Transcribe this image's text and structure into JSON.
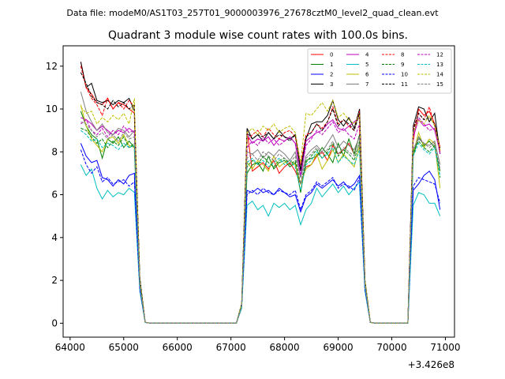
{
  "chart_data": {
    "type": "line",
    "suptitle": "Data file: modeM0/AS1T03_257T01_9000003976_27678cztM0_level2_quad_clean.evt",
    "title": "Quadrant 3 module wise count rates with 100.0s bins.",
    "xlabel": "",
    "ylabel": "",
    "x_offset_label": "+3.426e8",
    "xlim": [
      63870,
      71170
    ],
    "ylim": [
      -0.65,
      12.95
    ],
    "x_ticks": [
      64000,
      65000,
      66000,
      67000,
      68000,
      69000,
      70000,
      71000
    ],
    "x_tick_labels": [
      "64000",
      "65000",
      "66000",
      "67000",
      "68000",
      "69000",
      "70000",
      "71000"
    ],
    "y_ticks": [
      0,
      2,
      4,
      6,
      8,
      10,
      12
    ],
    "y_tick_labels": [
      "0",
      "2",
      "4",
      "6",
      "8",
      "10",
      "12"
    ],
    "legend_position": "upper right",
    "segments": [
      {
        "x_start": 64200,
        "count": 11
      },
      {
        "x_start": 65200,
        "count": 10
      },
      {
        "x_start": 67100,
        "count": 24
      },
      {
        "x_start": 69400,
        "count": 10
      },
      {
        "x_start": 70300,
        "count": 7
      }
    ],
    "series": [
      {
        "name": "0",
        "color": "#ff0000",
        "dashed": false,
        "values": [
          12.2,
          11.0,
          10.7,
          10.3,
          10.2,
          10.5,
          10.0,
          10.3,
          10.2,
          10.0,
          9.8,
          9.6,
          2.0,
          0.04,
          0,
          0,
          0,
          0,
          0,
          0,
          0,
          0,
          0.8,
          9.0,
          7.1,
          7.3,
          7.5,
          7.2,
          7.6,
          7.0,
          7.3,
          7.5,
          7.1,
          6.5,
          7.3,
          7.4,
          7.8,
          8.0,
          7.6,
          8.3,
          7.9,
          8.1,
          8.4,
          7.9,
          8.8,
          9.8,
          2.0,
          0.04,
          0,
          0,
          0,
          0,
          0,
          0,
          0,
          0,
          8.5,
          10.0,
          9.7,
          9.9,
          9.3,
          8.2
        ]
      },
      {
        "name": "1",
        "color": "#008000",
        "dashed": false,
        "values": [
          9.9,
          9.2,
          8.8,
          8.6,
          7.7,
          8.6,
          8.4,
          8.7,
          8.2,
          8.5,
          8.2,
          8.0,
          1.8,
          0.04,
          0,
          0,
          0,
          0,
          0,
          0,
          0,
          0,
          0.8,
          7.0,
          7.4,
          7.5,
          7.1,
          7.8,
          7.2,
          7.5,
          7.6,
          7.3,
          7.5,
          6.1,
          7.6,
          7.7,
          7.8,
          8.2,
          7.9,
          7.5,
          8.4,
          7.8,
          8.6,
          7.9,
          8.8,
          8.7,
          1.8,
          0.04,
          0,
          0,
          0,
          0,
          0,
          0,
          0,
          0,
          7.8,
          8.7,
          8.3,
          8.5,
          8.2,
          7.1
        ]
      },
      {
        "name": "2",
        "color": "#0000ff",
        "dashed": false,
        "values": [
          8.4,
          7.8,
          7.5,
          7.6,
          6.8,
          6.7,
          6.4,
          6.7,
          6.5,
          6.9,
          7.0,
          6.8,
          1.6,
          0.04,
          0,
          0,
          0,
          0,
          0,
          0,
          0,
          0,
          0.8,
          6.2,
          6.1,
          6.3,
          6.1,
          6.2,
          6.0,
          6.3,
          6.1,
          5.9,
          6.0,
          5.2,
          5.9,
          6.1,
          6.5,
          6.3,
          6.5,
          6.7,
          6.4,
          6.6,
          6.3,
          6.5,
          6.9,
          6.9,
          1.6,
          0.04,
          0,
          0,
          0,
          0,
          0,
          0,
          0,
          0,
          6.2,
          6.5,
          6.9,
          7.1,
          6.7,
          5.3
        ]
      },
      {
        "name": "3",
        "color": "#000000",
        "dashed": false,
        "values": [
          12.2,
          11.0,
          11.2,
          10.4,
          10.3,
          10.4,
          10.2,
          10.4,
          10.3,
          10.5,
          9.9,
          9.6,
          2.1,
          0.04,
          0,
          0,
          0,
          0,
          0,
          0,
          0,
          0,
          0.9,
          9.1,
          8.6,
          8.8,
          8.5,
          8.9,
          8.6,
          9.0,
          8.7,
          8.6,
          8.8,
          7.1,
          8.6,
          9.3,
          9.4,
          9.4,
          9.7,
          10.4,
          9.5,
          9.2,
          9.6,
          9.1,
          10.0,
          10.0,
          2.0,
          0.04,
          0,
          0,
          0,
          0,
          0,
          0,
          0,
          0,
          9.2,
          10.1,
          10.0,
          9.4,
          9.8,
          7.9
        ]
      },
      {
        "name": "4",
        "color": "#bf00bf",
        "dashed": false,
        "values": [
          9.6,
          9.5,
          9.3,
          9.0,
          9.2,
          9.0,
          8.8,
          9.0,
          8.9,
          9.1,
          8.9,
          8.7,
          1.8,
          0.04,
          0,
          0,
          0,
          0,
          0,
          0,
          0,
          0,
          0.8,
          8.8,
          8.4,
          8.6,
          8.5,
          8.7,
          8.3,
          8.6,
          8.5,
          8.7,
          8.4,
          6.8,
          8.5,
          8.7,
          8.9,
          9.0,
          9.3,
          9.5,
          9.1,
          9.0,
          9.2,
          9.4,
          9.6,
          9.5,
          1.8,
          0.04,
          0,
          0,
          0,
          0,
          0,
          0,
          0,
          0,
          8.7,
          9.5,
          9.2,
          9.3,
          9.0,
          8.0
        ]
      },
      {
        "name": "5",
        "color": "#00bfbf",
        "dashed": false,
        "values": [
          7.4,
          6.9,
          7.2,
          6.3,
          5.8,
          6.2,
          5.9,
          6.1,
          6.0,
          6.3,
          6.1,
          6.0,
          1.5,
          0.04,
          0,
          0,
          0,
          0,
          0,
          0,
          0,
          0,
          0.7,
          5.5,
          5.7,
          5.3,
          5.5,
          5.0,
          5.6,
          5.4,
          5.6,
          5.3,
          5.5,
          4.6,
          5.3,
          5.6,
          6.3,
          5.9,
          6.2,
          6.5,
          6.1,
          6.4,
          6.0,
          6.3,
          6.6,
          6.4,
          1.5,
          0.04,
          0,
          0,
          0,
          0,
          0,
          0,
          0,
          0,
          5.5,
          6.1,
          6.0,
          5.6,
          5.6,
          5.0
        ]
      },
      {
        "name": "6",
        "color": "#bfbf00",
        "dashed": false,
        "values": [
          10.2,
          9.2,
          8.6,
          8.3,
          8.0,
          8.6,
          8.7,
          8.4,
          8.8,
          8.3,
          8.2,
          8.1,
          1.9,
          0.04,
          0,
          0,
          0,
          0,
          0,
          0,
          0,
          0,
          0.8,
          7.5,
          7.2,
          7.6,
          7.4,
          7.1,
          7.8,
          7.3,
          7.5,
          7.6,
          7.4,
          6.5,
          7.2,
          7.4,
          7.9,
          7.2,
          7.6,
          8.1,
          7.5,
          7.9,
          7.6,
          7.3,
          8.3,
          8.0,
          1.9,
          0.04,
          0,
          0,
          0,
          0,
          0,
          0,
          0,
          0,
          7.9,
          8.9,
          8.2,
          8.6,
          8.4,
          6.3
        ]
      },
      {
        "name": "7",
        "color": "#7f7f7f",
        "dashed": false,
        "values": [
          10.8,
          9.9,
          9.4,
          9.0,
          9.3,
          8.9,
          8.8,
          9.1,
          9.0,
          8.7,
          9.0,
          8.8,
          1.9,
          0.04,
          0,
          0,
          0,
          0,
          0,
          0,
          0,
          0,
          0.8,
          8.0,
          7.9,
          8.1,
          7.7,
          8.0,
          7.8,
          8.1,
          7.9,
          7.6,
          8.0,
          6.8,
          7.8,
          8.1,
          8.3,
          8.0,
          8.4,
          8.8,
          8.2,
          8.5,
          8.3,
          8.1,
          8.7,
          8.6,
          1.8,
          0.04,
          0,
          0,
          0,
          0,
          0,
          0,
          0,
          0,
          8.1,
          8.6,
          8.4,
          8.3,
          8.5,
          7.4
        ]
      },
      {
        "name": "8",
        "color": "#ff0000",
        "dashed": true,
        "values": [
          12.0,
          11.0,
          10.5,
          10.2,
          9.7,
          10.5,
          10.0,
          10.3,
          10.0,
          10.4,
          10.1,
          9.8,
          2.0,
          0.04,
          0,
          0,
          0,
          0,
          0,
          0,
          0,
          0,
          0.8,
          8.5,
          8.8,
          9.0,
          8.7,
          9.1,
          8.8,
          8.6,
          8.9,
          9.0,
          8.7,
          7.4,
          8.8,
          8.9,
          9.3,
          9.1,
          9.4,
          10.1,
          9.3,
          9.5,
          9.2,
          9.0,
          9.9,
          9.7,
          2.0,
          0.04,
          0,
          0,
          0,
          0,
          0,
          0,
          0,
          0,
          9.1,
          9.8,
          9.5,
          10.1,
          9.2,
          8.0
        ]
      },
      {
        "name": "9",
        "color": "#008000",
        "dashed": true,
        "values": [
          9.1,
          9.0,
          8.7,
          8.4,
          8.6,
          8.2,
          8.5,
          8.3,
          8.7,
          8.2,
          8.4,
          8.2,
          1.8,
          0.04,
          0,
          0,
          0,
          0,
          0,
          0,
          0,
          0,
          0.8,
          7.3,
          7.6,
          7.4,
          7.8,
          7.5,
          7.3,
          7.6,
          7.7,
          7.4,
          7.6,
          6.5,
          7.5,
          7.8,
          8.1,
          7.7,
          8.0,
          8.4,
          7.8,
          8.1,
          7.9,
          7.6,
          8.5,
          8.3,
          1.8,
          0.04,
          0,
          0,
          0,
          0,
          0,
          0,
          0,
          0,
          8.0,
          8.5,
          8.2,
          8.0,
          8.3,
          6.8
        ]
      },
      {
        "name": "10",
        "color": "#0000ff",
        "dashed": true,
        "values": [
          8.1,
          7.4,
          7.0,
          7.3,
          6.6,
          6.8,
          6.5,
          6.6,
          6.7,
          6.4,
          6.6,
          6.5,
          1.6,
          0.04,
          0,
          0,
          0,
          0,
          0,
          0,
          0,
          0,
          0.8,
          6.0,
          6.2,
          6.0,
          6.3,
          6.1,
          6.0,
          6.2,
          6.1,
          6.0,
          6.2,
          5.3,
          6.0,
          6.2,
          6.6,
          6.4,
          6.6,
          6.8,
          6.3,
          6.5,
          6.4,
          6.2,
          6.8,
          6.7,
          1.6,
          0.04,
          0,
          0,
          0,
          0,
          0,
          0,
          0,
          0,
          6.4,
          6.8,
          6.7,
          6.6,
          6.5,
          5.6
        ]
      },
      {
        "name": "11",
        "color": "#000000",
        "dashed": true,
        "values": [
          11.7,
          11.2,
          10.6,
          10.3,
          10.2,
          10.0,
          10.4,
          10.1,
          10.3,
          10.0,
          10.2,
          9.9,
          2.1,
          0.04,
          0,
          0,
          0,
          0,
          0,
          0,
          0,
          0,
          0.9,
          8.9,
          8.6,
          8.8,
          8.7,
          8.9,
          8.6,
          8.8,
          8.7,
          8.5,
          8.8,
          7.2,
          8.7,
          8.9,
          9.3,
          9.0,
          9.4,
          10.0,
          9.2,
          9.5,
          9.3,
          9.0,
          9.8,
          9.7,
          2.0,
          0.04,
          0,
          0,
          0,
          0,
          0,
          0,
          0,
          0,
          9.0,
          9.8,
          9.5,
          9.6,
          9.3,
          8.1
        ]
      },
      {
        "name": "12",
        "color": "#bf00bf",
        "dashed": true,
        "values": [
          9.3,
          9.5,
          9.0,
          8.8,
          9.1,
          8.7,
          9.0,
          8.8,
          9.2,
          8.9,
          9.0,
          8.8,
          1.8,
          0.04,
          0,
          0,
          0,
          0,
          0,
          0,
          0,
          0,
          0.8,
          8.2,
          8.5,
          8.3,
          8.7,
          8.4,
          8.6,
          8.3,
          8.5,
          8.7,
          8.4,
          6.9,
          8.3,
          8.6,
          9.0,
          8.8,
          9.1,
          9.4,
          8.9,
          9.1,
          8.8,
          8.6,
          9.3,
          9.2,
          1.8,
          0.04,
          0,
          0,
          0,
          0,
          0,
          0,
          0,
          0,
          8.8,
          9.6,
          9.3,
          9.0,
          9.1,
          7.9
        ]
      },
      {
        "name": "13",
        "color": "#00bfbf",
        "dashed": true,
        "values": [
          9.0,
          8.8,
          8.5,
          8.6,
          8.2,
          8.4,
          8.3,
          8.1,
          8.4,
          8.2,
          8.3,
          8.1,
          1.8,
          0.04,
          0,
          0,
          0,
          0,
          0,
          0,
          0,
          0,
          0.8,
          7.5,
          7.7,
          7.4,
          7.6,
          7.3,
          7.5,
          7.7,
          7.4,
          7.6,
          7.3,
          6.2,
          7.4,
          7.6,
          8.0,
          7.7,
          7.9,
          8.2,
          7.5,
          7.8,
          7.6,
          7.4,
          8.1,
          8.0,
          1.8,
          0.04,
          0,
          0,
          0,
          0,
          0,
          0,
          0,
          0,
          7.8,
          8.4,
          8.1,
          7.9,
          8.2,
          6.9
        ]
      },
      {
        "name": "14",
        "color": "#bfbf00",
        "dashed": true,
        "values": [
          10.1,
          9.8,
          9.9,
          9.3,
          9.6,
          9.4,
          9.7,
          9.5,
          9.8,
          9.3,
          10.5,
          10.0,
          2.0,
          0.04,
          0,
          0,
          0,
          0,
          0,
          0,
          0,
          0,
          0.9,
          8.9,
          9.1,
          8.8,
          9.2,
          9.0,
          9.3,
          8.9,
          9.1,
          9.2,
          8.9,
          7.5,
          9.8,
          9.7,
          10.0,
          10.3,
          9.9,
          10.4,
          9.6,
          9.8,
          9.5,
          9.3,
          9.7,
          9.6,
          2.0,
          0.04,
          0,
          0,
          0,
          0,
          0,
          0,
          0,
          0,
          8.9,
          9.5,
          9.3,
          9.7,
          9.2,
          8.1
        ]
      },
      {
        "name": "15",
        "color": "#7f7f7f",
        "dashed": true,
        "values": [
          9.4,
          9.3,
          9.0,
          8.7,
          8.9,
          8.6,
          8.8,
          8.5,
          8.9,
          8.6,
          8.7,
          8.5,
          1.8,
          0.04,
          0,
          0,
          0,
          0,
          0,
          0,
          0,
          0,
          0.8,
          7.7,
          7.9,
          7.6,
          8.0,
          7.8,
          7.6,
          7.9,
          7.7,
          7.5,
          7.8,
          6.5,
          7.7,
          7.9,
          8.2,
          7.9,
          8.1,
          8.5,
          7.9,
          8.2,
          8.0,
          7.8,
          8.4,
          8.3,
          1.8,
          0.04,
          0,
          0,
          0,
          0,
          0,
          0,
          0,
          0,
          8.1,
          8.7,
          8.4,
          8.2,
          8.4,
          7.2
        ]
      }
    ]
  }
}
